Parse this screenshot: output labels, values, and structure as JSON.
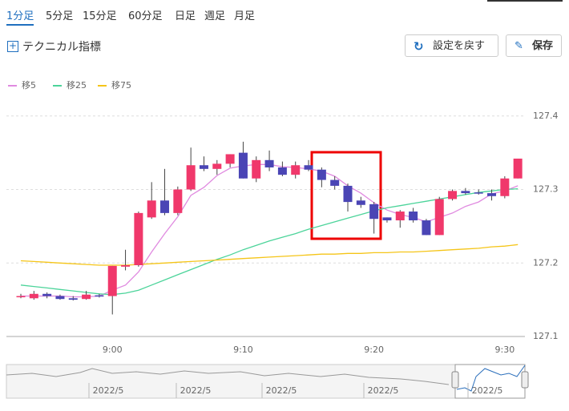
{
  "tabs": [
    "1分足",
    "5分足",
    "15分足",
    "60分足",
    "日足",
    "週足",
    "月足"
  ],
  "active_tab": 0,
  "toolbar": {
    "indicator": "テクニカル指標",
    "reset": "設定を戻す",
    "save": "保存"
  },
  "chart_data": {
    "type": "candlestick",
    "categories": [
      null,
      null,
      null,
      null,
      null,
      null,
      null,
      "9:00",
      null,
      null,
      null,
      null,
      null,
      null,
      null,
      null,
      null,
      "9:10",
      null,
      null,
      null,
      null,
      null,
      null,
      null,
      null,
      null,
      "9:20",
      null,
      null,
      null,
      null,
      null,
      null,
      null,
      null,
      null,
      "9:30",
      null
    ],
    "open": [
      127.154,
      127.152,
      127.158,
      127.155,
      127.152,
      127.151,
      127.156,
      127.155,
      127.195,
      127.197,
      127.262,
      127.285,
      127.268,
      127.3,
      127.333,
      127.328,
      127.335,
      127.35,
      127.315,
      127.34,
      127.33,
      127.32,
      127.333,
      127.327,
      127.313,
      127.305,
      127.285,
      127.28,
      127.262,
      127.258,
      127.27,
      127.258,
      127.238,
      127.287,
      127.298,
      127.296,
      127.295,
      127.291,
      127.315
    ],
    "high": [
      127.158,
      127.162,
      127.16,
      127.157,
      127.155,
      127.162,
      127.158,
      127.196,
      127.218,
      127.27,
      127.31,
      127.328,
      127.304,
      127.357,
      127.345,
      127.34,
      127.348,
      127.365,
      127.345,
      127.353,
      127.338,
      127.338,
      127.34,
      127.33,
      127.318,
      127.308,
      127.29,
      127.283,
      127.262,
      127.272,
      127.275,
      127.26,
      127.29,
      127.3,
      127.302,
      127.3,
      127.3,
      127.318,
      127.342
    ],
    "low": [
      127.152,
      127.15,
      127.152,
      127.15,
      127.149,
      127.15,
      127.153,
      127.13,
      127.19,
      127.195,
      127.26,
      127.265,
      127.265,
      127.298,
      127.325,
      127.32,
      127.33,
      127.315,
      127.31,
      127.325,
      127.318,
      127.315,
      127.325,
      127.303,
      127.3,
      127.27,
      127.275,
      127.24,
      127.255,
      127.248,
      127.255,
      127.238,
      127.238,
      127.285,
      127.293,
      127.293,
      127.285,
      127.288,
      127.315
    ],
    "close": [
      127.155,
      127.158,
      127.155,
      127.151,
      127.15,
      127.157,
      127.155,
      127.196,
      127.197,
      127.268,
      127.285,
      127.268,
      127.3,
      127.333,
      127.328,
      127.335,
      127.348,
      127.315,
      127.34,
      127.33,
      127.32,
      127.333,
      127.327,
      127.313,
      127.305,
      127.283,
      127.279,
      127.26,
      127.258,
      127.27,
      127.258,
      127.238,
      127.287,
      127.298,
      127.295,
      127.295,
      127.291,
      127.315,
      127.342
    ],
    "up_color": "#f0386b",
    "down_color": "#4a45b5",
    "series": [
      {
        "name": "移5",
        "color": "#e08ae0",
        "values": [
          127.155,
          127.155,
          127.155,
          127.155,
          127.154,
          127.154,
          127.155,
          127.163,
          127.17,
          127.188,
          127.215,
          127.24,
          127.263,
          127.292,
          127.303,
          127.319,
          127.329,
          127.332,
          127.334,
          127.334,
          127.331,
          127.33,
          127.328,
          127.325,
          127.318,
          127.305,
          127.295,
          127.282,
          127.272,
          127.266,
          127.262,
          127.256,
          127.262,
          127.268,
          127.277,
          127.283,
          127.294,
          127.298,
          127.305
        ]
      },
      {
        "name": "移25",
        "color": "#4cd49a",
        "values": [
          127.17,
          127.168,
          127.166,
          127.164,
          127.162,
          127.16,
          127.158,
          127.157,
          127.159,
          127.163,
          127.17,
          127.177,
          127.184,
          127.191,
          127.198,
          127.205,
          127.211,
          127.218,
          127.224,
          127.23,
          127.235,
          127.24,
          127.246,
          127.251,
          127.256,
          127.261,
          127.266,
          127.271,
          127.275,
          127.278,
          127.281,
          127.284,
          127.287,
          127.29,
          127.293,
          127.296,
          127.298,
          127.3,
          127.301
        ]
      },
      {
        "name": "移75",
        "color": "#f5c518",
        "values": [
          127.203,
          127.202,
          127.201,
          127.2,
          127.199,
          127.198,
          127.197,
          127.197,
          127.197,
          127.198,
          127.199,
          127.2,
          127.201,
          127.202,
          127.203,
          127.204,
          127.205,
          127.206,
          127.207,
          127.208,
          127.209,
          127.21,
          127.211,
          127.212,
          127.212,
          127.213,
          127.213,
          127.214,
          127.214,
          127.215,
          127.215,
          127.216,
          127.217,
          127.218,
          127.219,
          127.22,
          127.222,
          127.223,
          127.225
        ]
      }
    ],
    "ylim": [
      127.1,
      127.415
    ],
    "yticks": [
      127.1,
      127.2,
      127.3,
      127.4
    ],
    "grid": true
  },
  "navigator": {
    "labels": [
      "2022/5",
      "2022/5",
      "2022/5",
      "2022/5",
      "2022/5"
    ]
  }
}
